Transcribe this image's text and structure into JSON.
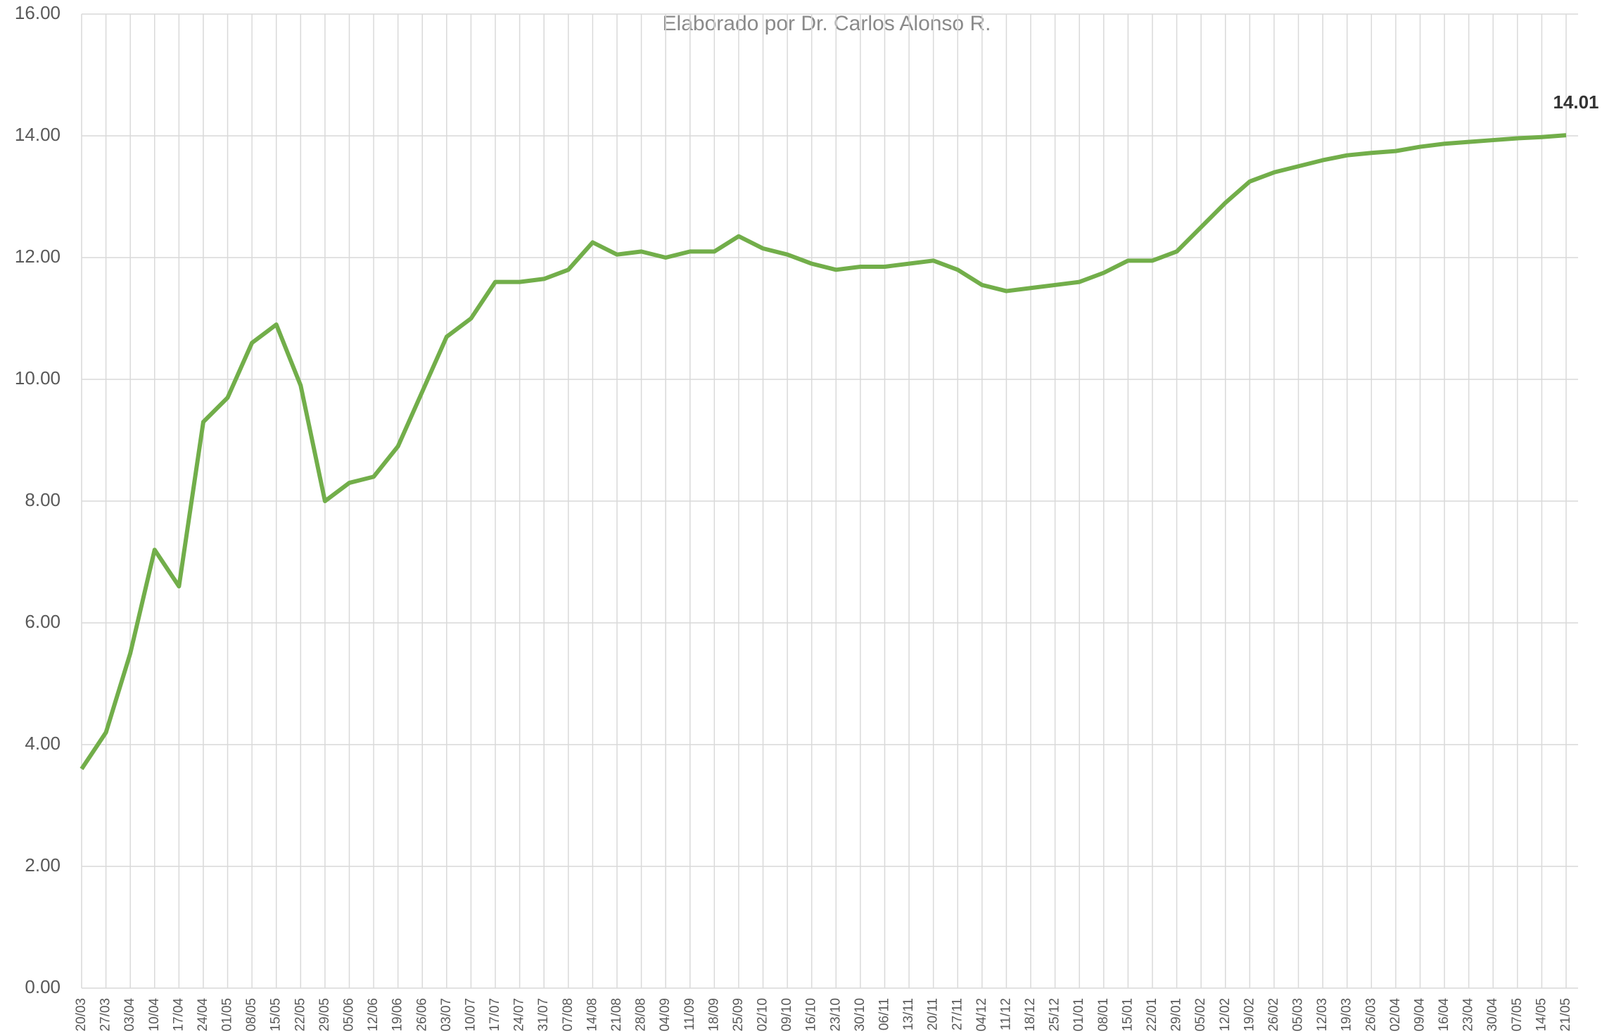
{
  "chart_data": {
    "type": "line",
    "subtitle": "Elaborado por Dr. Carlos Alonso R.",
    "annotation": "14.01",
    "categories": [
      "20/03",
      "27/03",
      "03/04",
      "10/04",
      "17/04",
      "24/04",
      "01/05",
      "08/05",
      "15/05",
      "22/05",
      "29/05",
      "05/06",
      "12/06",
      "19/06",
      "26/06",
      "03/07",
      "10/07",
      "17/07",
      "24/07",
      "31/07",
      "07/08",
      "14/08",
      "21/08",
      "28/08",
      "04/09",
      "11/09",
      "18/09",
      "25/09",
      "02/10",
      "09/10",
      "16/10",
      "23/10",
      "30/10",
      "06/11",
      "13/11",
      "20/11",
      "27/11",
      "04/12",
      "11/12",
      "18/12",
      "25/12",
      "01/01",
      "08/01",
      "15/01",
      "22/01",
      "29/01",
      "05/02",
      "12/02",
      "19/02",
      "26/02",
      "05/03",
      "12/03",
      "19/03",
      "26/03",
      "02/04",
      "09/04",
      "16/04",
      "23/04",
      "30/04",
      "07/05",
      "14/05",
      "21/05"
    ],
    "series": [
      {
        "color": "#72ae4a",
        "values": [
          3.6,
          4.2,
          5.5,
          7.2,
          6.6,
          9.3,
          9.7,
          10.6,
          10.9,
          9.9,
          8.0,
          8.3,
          8.4,
          8.9,
          9.8,
          10.7,
          11.0,
          11.6,
          11.6,
          11.65,
          11.8,
          12.25,
          12.05,
          12.1,
          12.0,
          12.1,
          12.1,
          12.35,
          12.15,
          12.05,
          11.9,
          11.8,
          11.85,
          11.85,
          11.9,
          11.95,
          11.8,
          11.55,
          11.45,
          11.5,
          11.55,
          11.6,
          11.75,
          11.95,
          11.95,
          12.1,
          12.5,
          12.9,
          13.25,
          13.4,
          13.5,
          13.6,
          13.68,
          13.72,
          13.75,
          13.82,
          13.87,
          13.9,
          13.93,
          13.96,
          13.98,
          14.01
        ]
      }
    ],
    "ylim": [
      0,
      16
    ],
    "yticks": [
      {
        "value": 0,
        "label": "0.00"
      },
      {
        "value": 2,
        "label": "2.00"
      },
      {
        "value": 4,
        "label": "4.00"
      },
      {
        "value": 6,
        "label": "6.00"
      },
      {
        "value": 8,
        "label": "8.00"
      },
      {
        "value": 10,
        "label": "10.00"
      },
      {
        "value": 12,
        "label": "12.00"
      },
      {
        "value": 14,
        "label": "14.00"
      },
      {
        "value": 16,
        "label": "16.00"
      }
    ],
    "grid": true
  }
}
